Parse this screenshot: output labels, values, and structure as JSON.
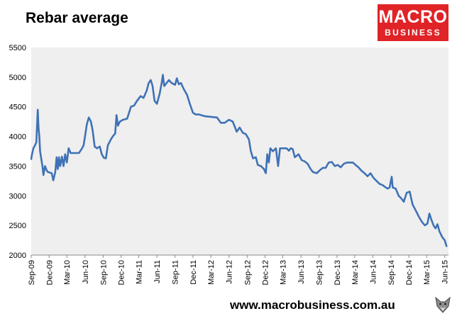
{
  "header": {
    "title": "Rebar average"
  },
  "logo": {
    "line1": "MACRO",
    "line2": "BUSINESS"
  },
  "footer": {
    "website": "www.macrobusiness.com.au"
  },
  "colors": {
    "series": "#3f72b5",
    "plot_background": "#efefef",
    "brand_red": "#e02327"
  },
  "chart_data": {
    "type": "line",
    "title": "Rebar average",
    "xlabel": "",
    "ylabel": "",
    "ylim": [
      2000,
      5500
    ],
    "yticks": [
      2000,
      2500,
      3000,
      3500,
      4000,
      4500,
      5000,
      5500
    ],
    "xlim": [
      "2009-09-01",
      "2015-06-20"
    ],
    "xticks": [
      {
        "label": "Sep-09",
        "date": "2009-09-01"
      },
      {
        "label": "Dec-09",
        "date": "2009-12-01"
      },
      {
        "label": "Mar-10",
        "date": "2010-03-01"
      },
      {
        "label": "Jun-10",
        "date": "2010-06-01"
      },
      {
        "label": "Sep-10",
        "date": "2010-09-01"
      },
      {
        "label": "Dec-10",
        "date": "2010-12-01"
      },
      {
        "label": "Mar-11",
        "date": "2011-03-01"
      },
      {
        "label": "Jun-11",
        "date": "2011-06-01"
      },
      {
        "label": "Sep-11",
        "date": "2011-09-01"
      },
      {
        "label": "Dec-11",
        "date": "2011-12-01"
      },
      {
        "label": "Mar-12",
        "date": "2012-03-01"
      },
      {
        "label": "Jun-12",
        "date": "2012-06-01"
      },
      {
        "label": "Sep-12",
        "date": "2012-09-01"
      },
      {
        "label": "Dec-12",
        "date": "2012-12-01"
      },
      {
        "label": "Mar-13",
        "date": "2013-03-01"
      },
      {
        "label": "Jun-13",
        "date": "2013-06-01"
      },
      {
        "label": "Sep-13",
        "date": "2013-09-01"
      },
      {
        "label": "Dec-13",
        "date": "2013-12-01"
      },
      {
        "label": "Mar-14",
        "date": "2014-03-01"
      },
      {
        "label": "Jun-14",
        "date": "2014-06-01"
      },
      {
        "label": "Sep-14",
        "date": "2014-09-01"
      },
      {
        "label": "Dec-14",
        "date": "2014-12-01"
      },
      {
        "label": "Mar-15",
        "date": "2015-03-01"
      },
      {
        "label": "Jun-15",
        "date": "2015-06-01"
      }
    ],
    "grid": false,
    "legend": "none",
    "series": [
      {
        "points": [
          [
            "2009-09-01",
            3620
          ],
          [
            "2009-09-05",
            3700
          ],
          [
            "2009-09-12",
            3800
          ],
          [
            "2009-09-20",
            3850
          ],
          [
            "2009-09-27",
            3900
          ],
          [
            "2009-10-04",
            4450
          ],
          [
            "2009-10-08",
            4150
          ],
          [
            "2009-10-12",
            4000
          ],
          [
            "2009-10-16",
            3750
          ],
          [
            "2009-10-22",
            3620
          ],
          [
            "2009-10-28",
            3500
          ],
          [
            "2009-11-02",
            3350
          ],
          [
            "2009-11-10",
            3500
          ],
          [
            "2009-11-18",
            3430
          ],
          [
            "2009-11-25",
            3400
          ],
          [
            "2009-12-05",
            3390
          ],
          [
            "2009-12-14",
            3380
          ],
          [
            "2009-12-22",
            3260
          ],
          [
            "2010-01-01",
            3400
          ],
          [
            "2010-01-08",
            3650
          ],
          [
            "2010-01-14",
            3450
          ],
          [
            "2010-01-20",
            3650
          ],
          [
            "2010-01-26",
            3500
          ],
          [
            "2010-02-04",
            3660
          ],
          [
            "2010-02-12",
            3500
          ],
          [
            "2010-02-20",
            3700
          ],
          [
            "2010-03-01",
            3560
          ],
          [
            "2010-03-10",
            3800
          ],
          [
            "2010-03-20",
            3720
          ],
          [
            "2010-04-10",
            3720
          ],
          [
            "2010-05-01",
            3720
          ],
          [
            "2010-05-15",
            3790
          ],
          [
            "2010-05-25",
            3850
          ],
          [
            "2010-06-01",
            4000
          ],
          [
            "2010-06-10",
            4200
          ],
          [
            "2010-06-20",
            4320
          ],
          [
            "2010-07-01",
            4250
          ],
          [
            "2010-07-10",
            4100
          ],
          [
            "2010-07-20",
            3830
          ],
          [
            "2010-08-01",
            3800
          ],
          [
            "2010-08-15",
            3830
          ],
          [
            "2010-08-25",
            3700
          ],
          [
            "2010-09-05",
            3640
          ],
          [
            "2010-09-15",
            3630
          ],
          [
            "2010-09-25",
            3850
          ],
          [
            "2010-10-10",
            3950
          ],
          [
            "2010-10-20",
            4000
          ],
          [
            "2010-11-01",
            4050
          ],
          [
            "2010-11-08",
            4360
          ],
          [
            "2010-11-15",
            4180
          ],
          [
            "2010-11-25",
            4250
          ],
          [
            "2010-12-10",
            4280
          ],
          [
            "2011-01-01",
            4300
          ],
          [
            "2011-01-20",
            4500
          ],
          [
            "2011-02-05",
            4520
          ],
          [
            "2011-02-20",
            4600
          ],
          [
            "2011-03-10",
            4680
          ],
          [
            "2011-03-25",
            4650
          ],
          [
            "2011-04-10",
            4770
          ],
          [
            "2011-04-20",
            4900
          ],
          [
            "2011-05-01",
            4950
          ],
          [
            "2011-05-10",
            4850
          ],
          [
            "2011-05-20",
            4600
          ],
          [
            "2011-06-01",
            4550
          ],
          [
            "2011-06-15",
            4720
          ],
          [
            "2011-06-25",
            4900
          ],
          [
            "2011-07-01",
            5040
          ],
          [
            "2011-07-08",
            4850
          ],
          [
            "2011-07-20",
            4900
          ],
          [
            "2011-08-01",
            4950
          ],
          [
            "2011-08-15",
            4900
          ],
          [
            "2011-09-01",
            4870
          ],
          [
            "2011-09-10",
            4980
          ],
          [
            "2011-09-20",
            4880
          ],
          [
            "2011-10-01",
            4900
          ],
          [
            "2011-10-15",
            4800
          ],
          [
            "2011-11-01",
            4700
          ],
          [
            "2011-11-15",
            4550
          ],
          [
            "2011-12-01",
            4400
          ],
          [
            "2011-12-15",
            4370
          ],
          [
            "2012-01-01",
            4370
          ],
          [
            "2012-02-01",
            4340
          ],
          [
            "2012-03-01",
            4330
          ],
          [
            "2012-04-01",
            4320
          ],
          [
            "2012-04-20",
            4230
          ],
          [
            "2012-05-10",
            4230
          ],
          [
            "2012-06-01",
            4280
          ],
          [
            "2012-06-20",
            4250
          ],
          [
            "2012-07-10",
            4080
          ],
          [
            "2012-07-25",
            4150
          ],
          [
            "2012-08-10",
            4060
          ],
          [
            "2012-08-25",
            4040
          ],
          [
            "2012-09-10",
            3950
          ],
          [
            "2012-09-20",
            3750
          ],
          [
            "2012-10-01",
            3630
          ],
          [
            "2012-10-15",
            3650
          ],
          [
            "2012-10-25",
            3520
          ],
          [
            "2012-11-10",
            3500
          ],
          [
            "2012-11-25",
            3450
          ],
          [
            "2012-12-05",
            3380
          ],
          [
            "2012-12-12",
            3700
          ],
          [
            "2012-12-20",
            3560
          ],
          [
            "2012-12-28",
            3800
          ],
          [
            "2013-01-10",
            3750
          ],
          [
            "2013-01-25",
            3800
          ],
          [
            "2013-02-05",
            3500
          ],
          [
            "2013-02-15",
            3800
          ],
          [
            "2013-03-01",
            3800
          ],
          [
            "2013-03-20",
            3800
          ],
          [
            "2013-04-01",
            3760
          ],
          [
            "2013-04-10",
            3800
          ],
          [
            "2013-04-20",
            3790
          ],
          [
            "2013-05-01",
            3650
          ],
          [
            "2013-05-20",
            3700
          ],
          [
            "2013-06-05",
            3600
          ],
          [
            "2013-06-20",
            3580
          ],
          [
            "2013-07-05",
            3540
          ],
          [
            "2013-07-20",
            3450
          ],
          [
            "2013-08-01",
            3400
          ],
          [
            "2013-08-20",
            3380
          ],
          [
            "2013-09-05",
            3430
          ],
          [
            "2013-09-20",
            3470
          ],
          [
            "2013-10-05",
            3470
          ],
          [
            "2013-10-20",
            3560
          ],
          [
            "2013-11-05",
            3570
          ],
          [
            "2013-11-20",
            3500
          ],
          [
            "2013-12-05",
            3520
          ],
          [
            "2013-12-20",
            3480
          ],
          [
            "2014-01-05",
            3540
          ],
          [
            "2014-01-20",
            3560
          ],
          [
            "2014-02-05",
            3560
          ],
          [
            "2014-02-20",
            3560
          ],
          [
            "2014-03-05",
            3520
          ],
          [
            "2014-03-20",
            3480
          ],
          [
            "2014-04-05",
            3420
          ],
          [
            "2014-04-20",
            3380
          ],
          [
            "2014-05-05",
            3330
          ],
          [
            "2014-05-20",
            3380
          ],
          [
            "2014-06-05",
            3300
          ],
          [
            "2014-06-20",
            3250
          ],
          [
            "2014-07-05",
            3200
          ],
          [
            "2014-07-20",
            3180
          ],
          [
            "2014-08-01",
            3150
          ],
          [
            "2014-08-15",
            3120
          ],
          [
            "2014-08-25",
            3140
          ],
          [
            "2014-09-05",
            3320
          ],
          [
            "2014-09-10",
            3140
          ],
          [
            "2014-09-25",
            3120
          ],
          [
            "2014-10-10",
            3000
          ],
          [
            "2014-10-25",
            2950
          ],
          [
            "2014-11-05",
            2900
          ],
          [
            "2014-11-20",
            3050
          ],
          [
            "2014-12-05",
            3070
          ],
          [
            "2014-12-20",
            2850
          ],
          [
            "2015-01-05",
            2750
          ],
          [
            "2015-01-20",
            2650
          ],
          [
            "2015-02-05",
            2560
          ],
          [
            "2015-02-20",
            2500
          ],
          [
            "2015-03-05",
            2530
          ],
          [
            "2015-03-15",
            2700
          ],
          [
            "2015-03-25",
            2600
          ],
          [
            "2015-04-05",
            2500
          ],
          [
            "2015-04-15",
            2450
          ],
          [
            "2015-04-25",
            2520
          ],
          [
            "2015-05-05",
            2400
          ],
          [
            "2015-05-20",
            2300
          ],
          [
            "2015-06-01",
            2250
          ],
          [
            "2015-06-10",
            2150
          ]
        ]
      }
    ]
  }
}
